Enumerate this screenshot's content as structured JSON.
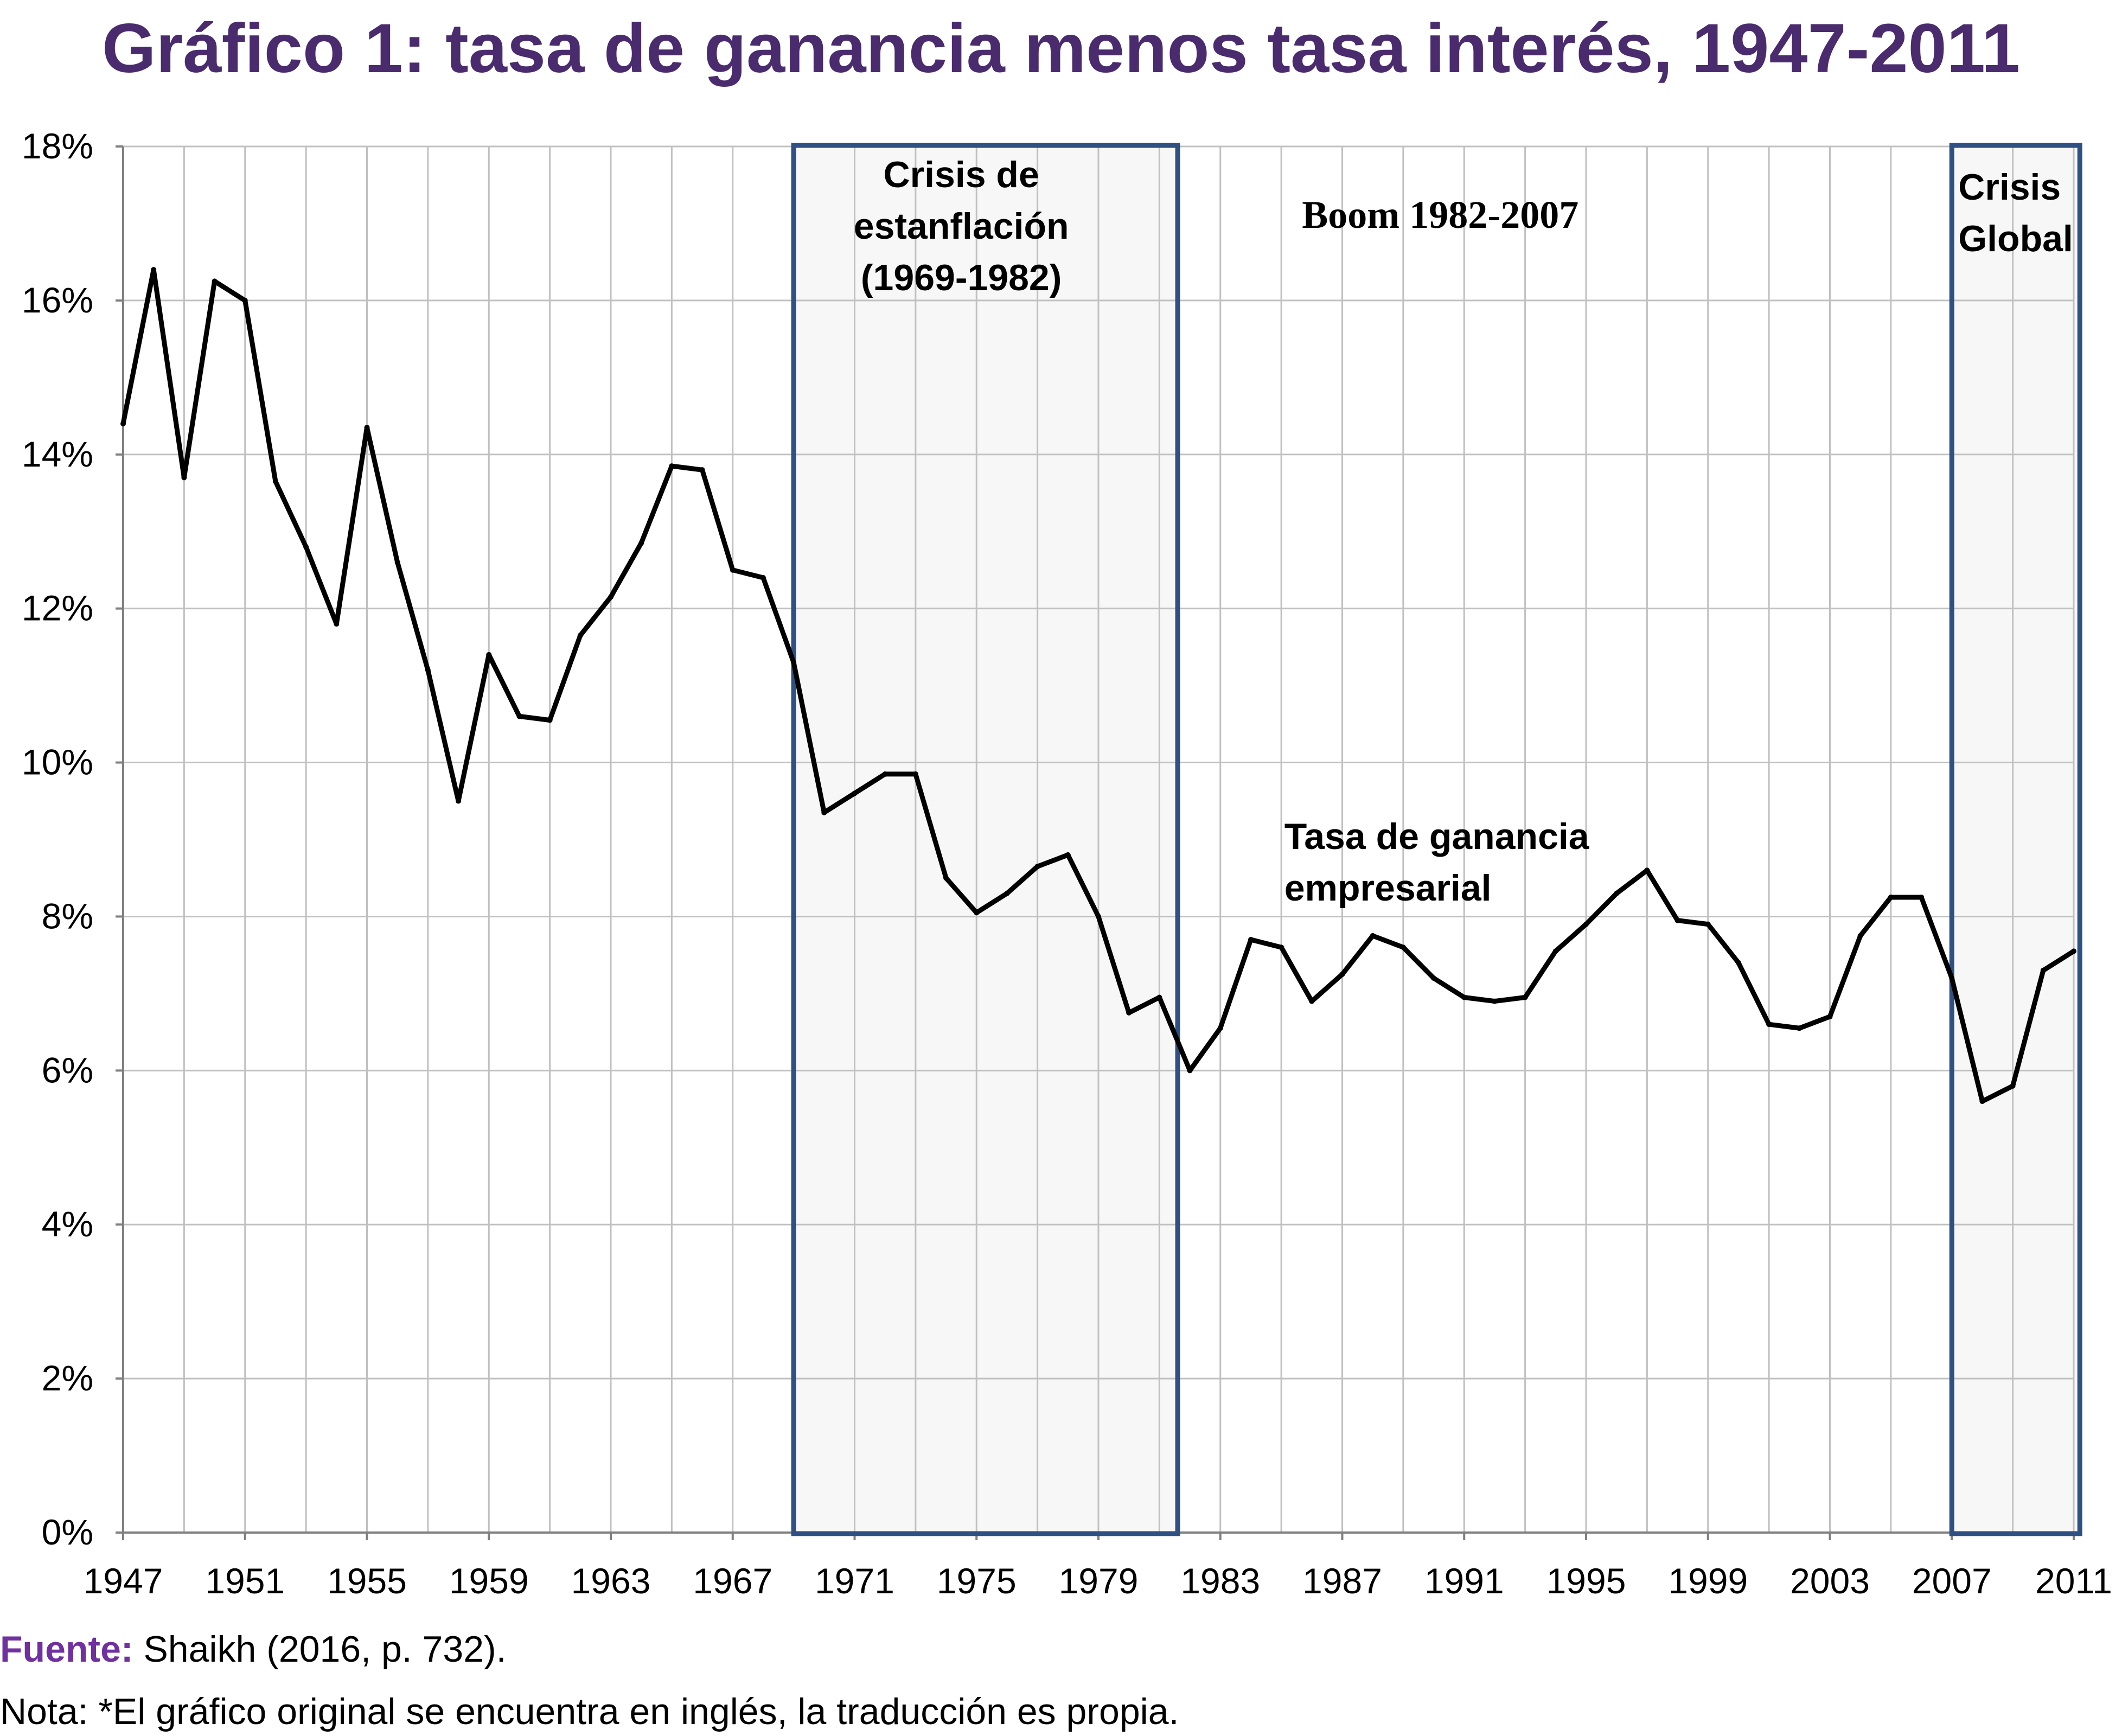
{
  "page": {
    "title": "Gráfico 1: tasa de ganancia menos tasa interés, 1947-2011",
    "source_label": "Fuente:",
    "source_text": " Shaikh (2016, p. 732).",
    "note": "Nota: *El gráfico original se encuentra en inglés, la traducción es propia."
  },
  "colors": {
    "title": "#4a2b6e",
    "source_label": "#7030a0",
    "band_border": "#2e5082",
    "band_fill": "#f7f7f7",
    "line": "#000000",
    "grid": "#c0c0c0",
    "axis": "#808080"
  },
  "chart_data": {
    "type": "line",
    "title": "Gráfico 1: tasa de ganancia menos tasa interés, 1947-2011",
    "xlabel": "",
    "ylabel": "",
    "xlim": [
      1947,
      2011
    ],
    "ylim": [
      0,
      18
    ],
    "grid": true,
    "ytick_values": [
      0,
      2,
      4,
      6,
      8,
      10,
      12,
      14,
      16,
      18
    ],
    "ytick_labels": [
      "0%",
      "2%",
      "4%",
      "6%",
      "8%",
      "10%",
      "12%",
      "14%",
      "16%",
      "18%"
    ],
    "xtick_values": [
      1947,
      1951,
      1955,
      1959,
      1963,
      1967,
      1971,
      1975,
      1979,
      1983,
      1987,
      1991,
      1995,
      1999,
      2003,
      2007,
      2011
    ],
    "xtick_labels": [
      "1947",
      "1951",
      "1955",
      "1959",
      "1963",
      "1967",
      "1971",
      "1975",
      "1979",
      "1983",
      "1987",
      "1991",
      "1995",
      "1999",
      "2003",
      "2007",
      "2011"
    ],
    "series": [
      {
        "x": [
          1947,
          1948,
          1949,
          1950,
          1951,
          1952,
          1953,
          1954,
          1955,
          1956,
          1957,
          1958,
          1959,
          1960,
          1961,
          1962,
          1963,
          1964,
          1965,
          1966,
          1967,
          1968,
          1969,
          1970,
          1971,
          1972,
          1973,
          1974,
          1975,
          1976,
          1977,
          1978,
          1979,
          1980,
          1981,
          1982,
          1983,
          1984,
          1985,
          1986,
          1987,
          1988,
          1989,
          1990,
          1991,
          1992,
          1993,
          1994,
          1995,
          1996,
          1997,
          1998,
          1999,
          2000,
          2001,
          2002,
          2003,
          2004,
          2005,
          2006,
          2007,
          2008,
          2009,
          2010,
          2011
        ],
        "values": [
          14.4,
          16.4,
          13.7,
          16.25,
          16.0,
          13.65,
          12.8,
          11.8,
          14.35,
          12.6,
          11.2,
          9.5,
          11.4,
          10.6,
          10.55,
          11.65,
          12.15,
          12.85,
          13.85,
          13.8,
          12.5,
          12.4,
          11.3,
          9.35,
          9.6,
          9.85,
          9.85,
          8.5,
          8.05,
          8.3,
          8.65,
          8.8,
          8.0,
          6.75,
          6.95,
          6.0,
          6.55,
          7.7,
          7.6,
          6.9,
          7.25,
          7.75,
          7.6,
          7.2,
          6.95,
          6.9,
          6.95,
          7.55,
          7.9,
          8.3,
          8.6,
          7.95,
          7.9,
          7.4,
          6.6,
          6.55,
          6.7,
          7.75,
          8.25,
          8.25,
          7.2,
          5.6,
          5.8,
          7.3,
          7.55
        ]
      }
    ],
    "shaded_periods": [
      {
        "x_start": 1969,
        "x_end": 1981.6,
        "label_lines": [
          "Crisis de",
          "estanflación",
          "(1969-1982)"
        ]
      },
      {
        "x_start": 2007,
        "x_end": 2011.2,
        "label_lines": [
          "Crisis",
          "Global"
        ]
      }
    ],
    "annotations": [
      {
        "text": "Boom 1982-2007",
        "x": 1985.5,
        "y": 17.0,
        "style": "serif"
      },
      {
        "text_lines": [
          "Tasa de ganancia",
          "empresarial"
        ],
        "x": 1985.1,
        "y": 8.3,
        "style": "sans"
      }
    ]
  }
}
